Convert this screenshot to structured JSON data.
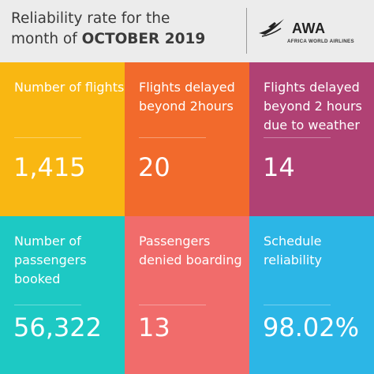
{
  "header": {
    "title_line1": "Reliability rate for the",
    "title_prefix": "month of ",
    "title_bold": "OCTOBER 2019"
  },
  "logo": {
    "name": "AWA",
    "subtitle": "AFRICA WORLD AIRLINES",
    "icon": "airplane-swoosh-icon"
  },
  "tiles": [
    {
      "label": "Number of flights",
      "value": "1,415",
      "color": "#f9b712"
    },
    {
      "label": "Flights delayed beyond 2hours",
      "value": "20",
      "color": "#f26a2c"
    },
    {
      "label": "Flights delayed beyond 2 hours due to weather",
      "value": "14",
      "color": "#b04174"
    },
    {
      "label": "Number of passengers booked",
      "value": "56,322",
      "color": "#1dc9c4"
    },
    {
      "label": "Passengers denied boarding",
      "value": "13",
      "color": "#f16c6b"
    },
    {
      "label": "Schedule reliability",
      "value": "98.02%",
      "color": "#2cb6e6"
    }
  ]
}
